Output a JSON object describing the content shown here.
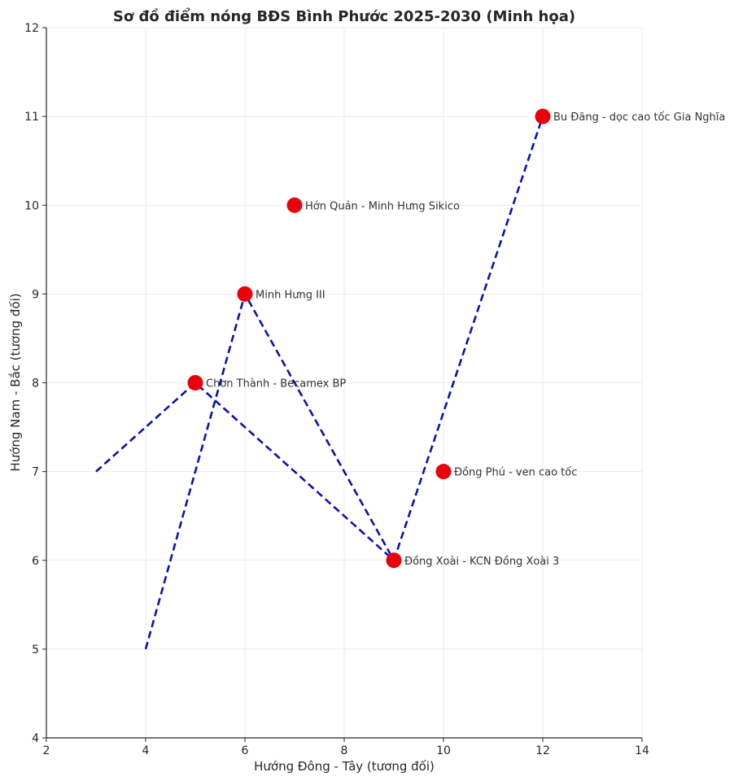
{
  "chart_data": {
    "type": "scatter",
    "title": "Sơ đồ điểm nóng BĐS Bình Phước 2025-2030 (Minh họa)",
    "xlabel": "Hướng Đông - Tây (tương đối)",
    "ylabel": "Hướng Nam - Bắc (tương đối)",
    "xlim": [
      2,
      14
    ],
    "ylim": [
      4,
      12
    ],
    "xticks": [
      2,
      4,
      6,
      8,
      10,
      12,
      14
    ],
    "yticks": [
      4,
      5,
      6,
      7,
      8,
      9,
      10,
      11,
      12
    ],
    "grid": true,
    "points": [
      {
        "label": "Đồng Xoài - KCN Đồng Xoài 3",
        "x": 9,
        "y": 6
      },
      {
        "label": "Chơn Thành - Becamex BP",
        "x": 5,
        "y": 8
      },
      {
        "label": "Minh Hưng III",
        "x": 6,
        "y": 9
      },
      {
        "label": "Hớn Quản - Minh Hưng Sikico",
        "x": 7,
        "y": 10
      },
      {
        "label": "Đồng Phú - ven cao tốc",
        "x": 10,
        "y": 7
      },
      {
        "label": "Bu Đăng - dọc cao tốc Gia Nghĩa",
        "x": 12,
        "y": 11
      }
    ],
    "point_color": "#e8000b",
    "routes": [
      {
        "points": [
          [
            3,
            7
          ],
          [
            5,
            8
          ],
          [
            9,
            6
          ]
        ]
      },
      {
        "points": [
          [
            4,
            5
          ],
          [
            6,
            9
          ],
          [
            9,
            6
          ]
        ]
      },
      {
        "points": [
          [
            9,
            6
          ],
          [
            12,
            11
          ]
        ]
      }
    ],
    "route_color": "#0a14a8"
  }
}
